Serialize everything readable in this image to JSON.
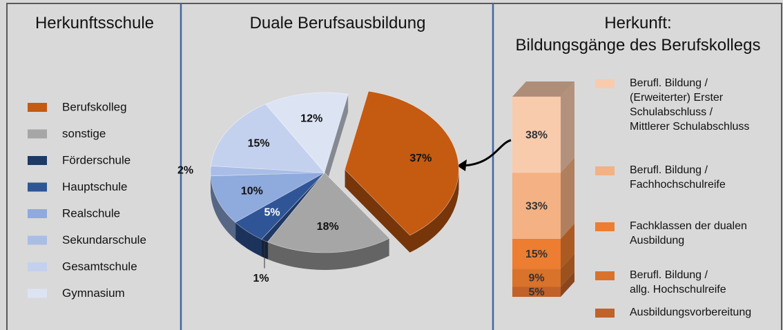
{
  "chart_data": [
    {
      "type": "pie",
      "legend_title": "Herkunftsschule",
      "title": "Duale Berufsausbildung",
      "categories": [
        "Berufskolleg",
        "sonstige",
        "Förderschule",
        "Hauptschule",
        "Realschule",
        "Sekundarschule",
        "Gesamtschule",
        "Gymnasium"
      ],
      "values": [
        37,
        18,
        1,
        5,
        10,
        2,
        15,
        12
      ],
      "value_labels": [
        "37%",
        "18%",
        "1%",
        "5%",
        "10%",
        "2%",
        "15%",
        "12%"
      ],
      "colors": [
        "#c55a11",
        "#a6a6a6",
        "#1f3864",
        "#2f5597",
        "#8faadc",
        "#a9bde6",
        "#c3d1ee",
        "#dce4f4"
      ]
    },
    {
      "type": "stacked_bar",
      "title": "Herkunft:\nBildungsgänge des Berufskollegs",
      "series": [
        {
          "name": "Berufl. Bildung /\n(Erweiterter) Erster\nSchulabschluss /\nMittlerer Schulabschluss",
          "color": "#f8cbad",
          "values": [
            38
          ],
          "value_labels": [
            "38%"
          ]
        },
        {
          "name": "Berufl. Bildung /\nFachhochschulreife",
          "color": "#f4b183",
          "values": [
            33
          ],
          "value_labels": [
            "33%"
          ]
        },
        {
          "name": "Fachklassen der dualen\nAusbildung",
          "color": "#ed7d31",
          "values": [
            15
          ],
          "value_labels": [
            "15%"
          ]
        },
        {
          "name": "Berufl. Bildung  /\nallg. Hochschulreife",
          "color": "#d9722b",
          "values": [
            9
          ],
          "value_labels": [
            "9%"
          ]
        },
        {
          "name": "Ausbildungsvorbereitung",
          "color": "#c0622a",
          "values": [
            5
          ],
          "value_labels": [
            "5%"
          ]
        }
      ]
    }
  ]
}
